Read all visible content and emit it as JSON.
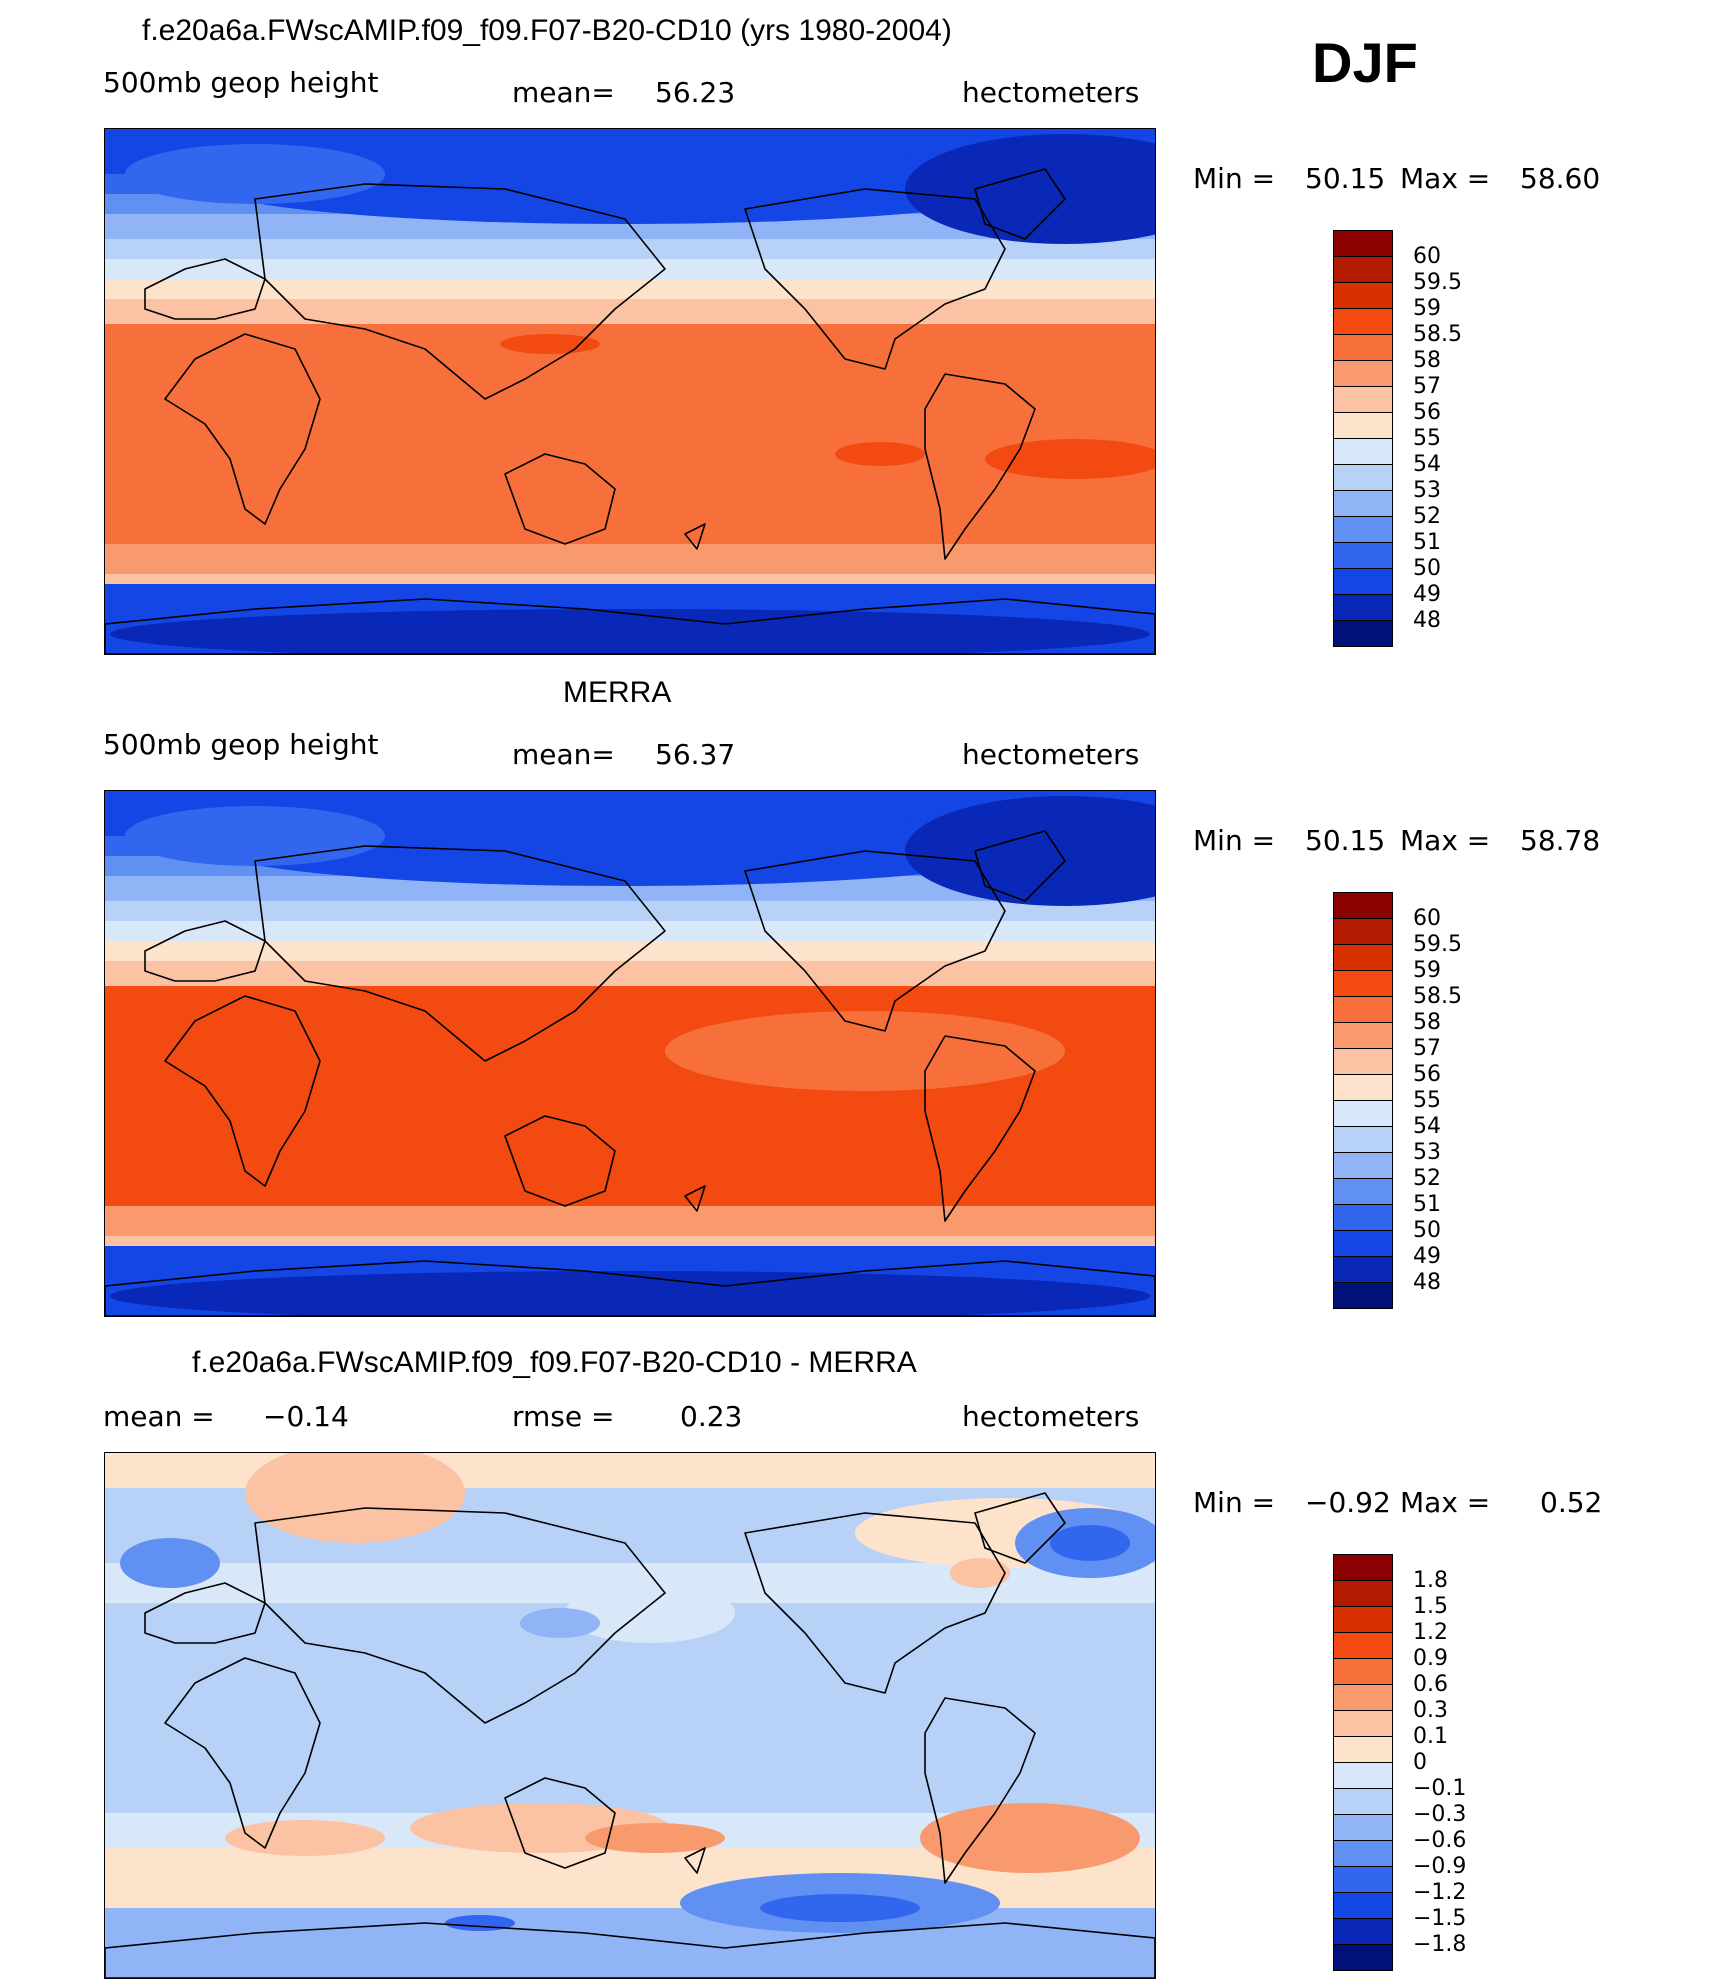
{
  "season": "DJF",
  "panels": [
    {
      "title": "f.e20a6a.FWscAMIP.f09_f09.F07-B20-CD10 (yrs 1980-2004)",
      "left_label": "500mb  geop  height",
      "center_label": "mean=",
      "center_value": "56.23",
      "units": "hectometers",
      "min_label": "Min  =",
      "min_value": "50.15",
      "max_label": "Max  =",
      "max_value": "58.60",
      "field": "model"
    },
    {
      "title": "MERRA",
      "left_label": "500mb  geop  height",
      "center_label": "mean=",
      "center_value": "56.37",
      "units": "hectometers",
      "min_label": "Min  =",
      "min_value": "50.15",
      "max_label": "Max  =",
      "max_value": "58.78",
      "field": "obs"
    },
    {
      "title": "f.e20a6a.FWscAMIP.f09_f09.F07-B20-CD10 - MERRA",
      "left_label": "mean  =",
      "left_value": "−0.14",
      "center_label": "rmse  =",
      "center_value": "0.23",
      "units": "hectometers",
      "min_label": "Min  =",
      "min_value": "−0.92",
      "max_label": "Max  =",
      "max_value": "0.52",
      "field": "diff"
    }
  ],
  "colorbars": {
    "absolute": {
      "labels": [
        "60",
        "59.5",
        "59",
        "58.5",
        "58",
        "57",
        "56",
        "55",
        "54",
        "53",
        "52",
        "51",
        "50",
        "49",
        "48"
      ],
      "colors": [
        "#8b0000",
        "#b31b00",
        "#d93000",
        "#f24a10",
        "#f7703c",
        "#f99a6e",
        "#fcc2a4",
        "#fde3cc",
        "#d9e8f8",
        "#b8d2f7",
        "#90b4f5",
        "#6090f2",
        "#3366ee",
        "#1446e6",
        "#0a28b8",
        "#00127a"
      ]
    },
    "difference": {
      "labels": [
        "1.8",
        "1.5",
        "1.2",
        "0.9",
        "0.6",
        "0.3",
        "0.1",
        "0",
        "−0.1",
        "−0.3",
        "−0.6",
        "−0.9",
        "−1.2",
        "−1.5",
        "−1.8"
      ],
      "colors": [
        "#8b0000",
        "#b31b00",
        "#d93000",
        "#f24a10",
        "#f7703c",
        "#f99a6e",
        "#fcc2a4",
        "#fde3cc",
        "#d9e8f8",
        "#b8d2f7",
        "#90b4f5",
        "#6090f2",
        "#3366ee",
        "#1446e6",
        "#0a28b8",
        "#00127a"
      ]
    }
  }
}
